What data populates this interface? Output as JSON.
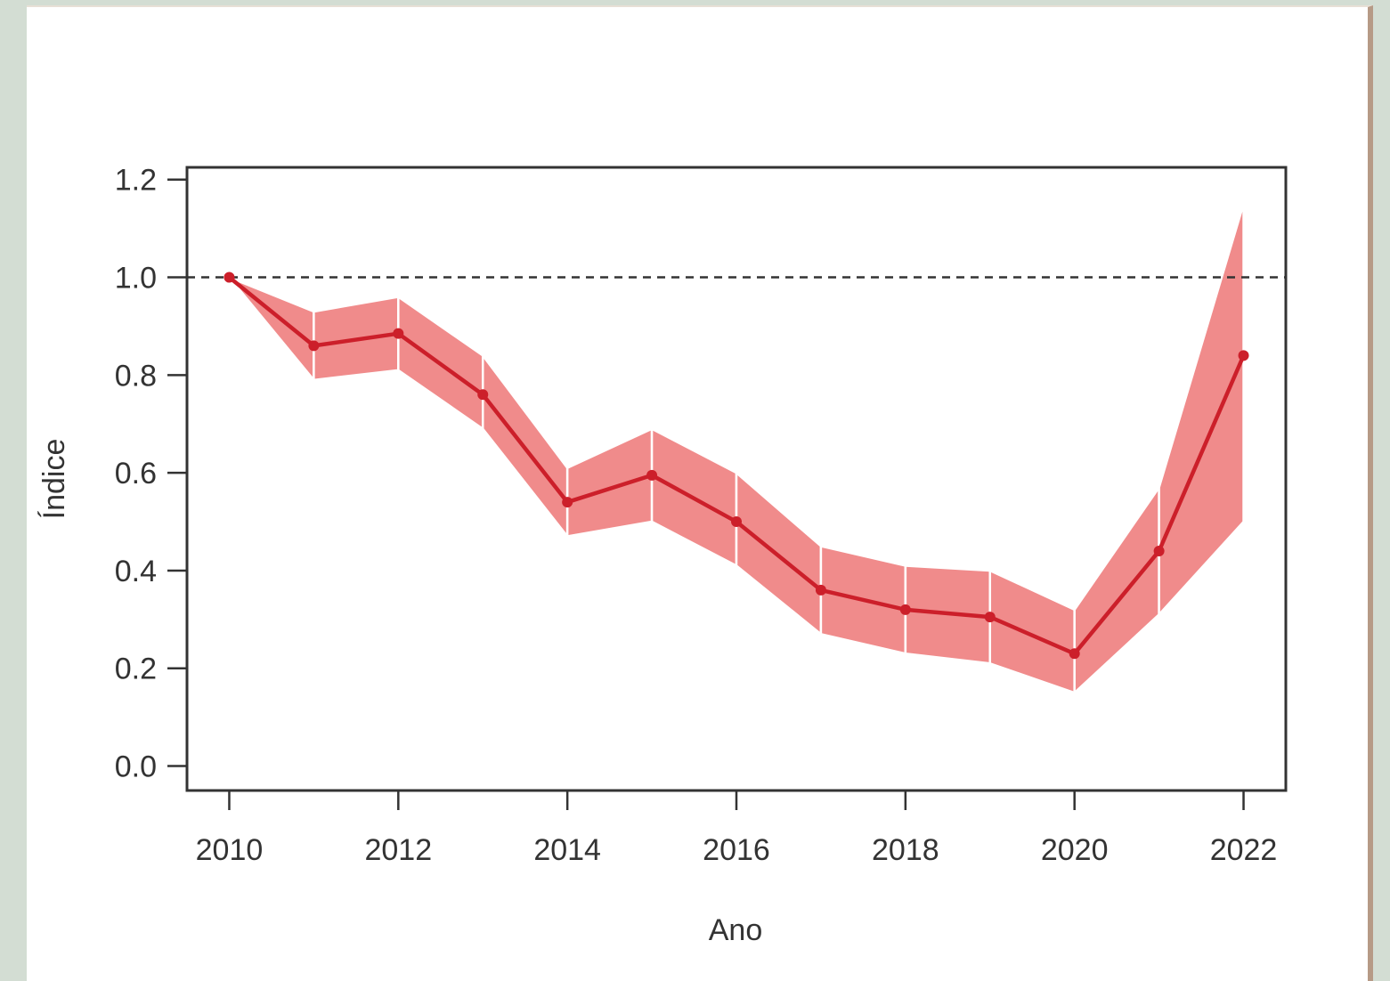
{
  "chart_data": {
    "type": "line",
    "xlabel": "Ano",
    "ylabel": "Índice",
    "x": [
      2010,
      2011,
      2012,
      2013,
      2014,
      2015,
      2016,
      2017,
      2018,
      2019,
      2020,
      2021,
      2022
    ],
    "series": [
      {
        "values": [
          1.0,
          0.86,
          0.885,
          0.76,
          0.54,
          0.595,
          0.5,
          0.36,
          0.32,
          0.305,
          0.23,
          0.44,
          0.84
        ],
        "lower": [
          1.0,
          0.79,
          0.81,
          0.69,
          0.47,
          0.5,
          0.41,
          0.27,
          0.23,
          0.21,
          0.15,
          0.31,
          0.5
        ],
        "upper": [
          1.0,
          0.93,
          0.96,
          0.84,
          0.61,
          0.69,
          0.6,
          0.45,
          0.41,
          0.4,
          0.32,
          0.57,
          1.15
        ],
        "color": "#cc1f2a",
        "band_color": "#f08b8b"
      }
    ],
    "xticks": [
      "2010",
      "2012",
      "2014",
      "2016",
      "2018",
      "2020",
      "2022"
    ],
    "yticks": [
      "0.0",
      "0.2",
      "0.4",
      "0.6",
      "0.8",
      "1.0",
      "1.2"
    ],
    "xlim": [
      2009.5,
      2022.5
    ],
    "ylim": [
      -0.05,
      1.225
    ],
    "reference_line": {
      "y": 1.0,
      "style": "dashed",
      "color": "#333333"
    },
    "grid": false,
    "legend": "none"
  }
}
